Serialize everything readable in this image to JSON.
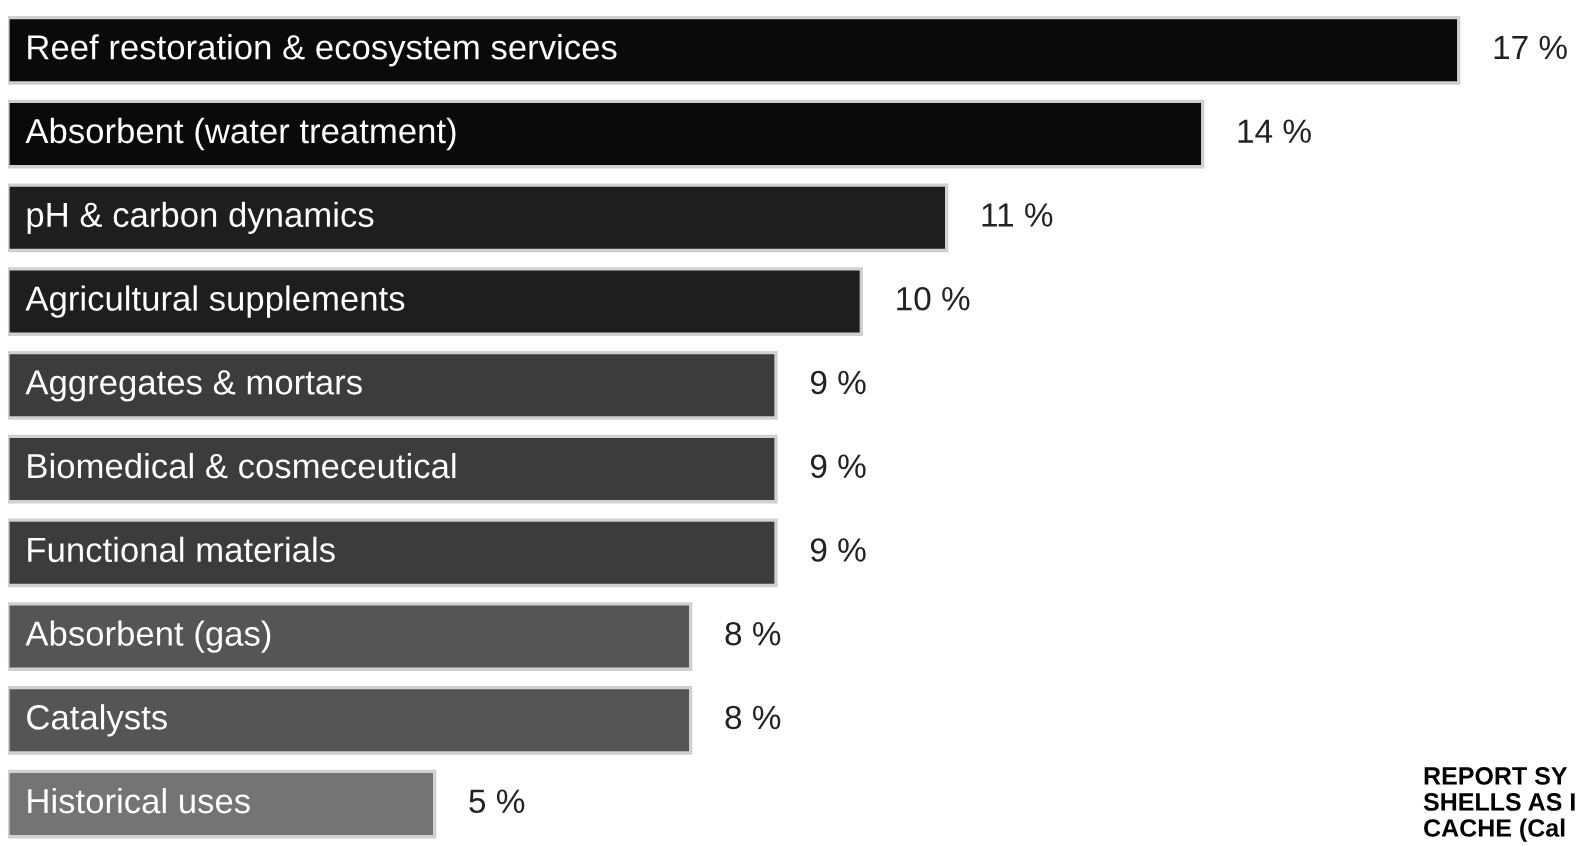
{
  "chart_data": {
    "type": "bar",
    "orientation": "horizontal",
    "categories": [
      "Reef restoration & ecosystem services",
      "Absorbent (water treatment)",
      "pH & carbon dynamics",
      "Agricultural supplements",
      "Aggregates & mortars",
      "Biomedical & cosmeceutical",
      "Functional materials",
      "Absorbent (gas)",
      "Catalysts",
      "Historical uses"
    ],
    "values": [
      17,
      14,
      11,
      10,
      9,
      9,
      9,
      8,
      8,
      5
    ],
    "colors": [
      "#0a0a0a",
      "#0a0a0a",
      "#1e1e1e",
      "#1e1e1e",
      "#3c3c3c",
      "#3c3c3c",
      "#3c3c3c",
      "#555555",
      "#555555",
      "#747474"
    ],
    "value_labels": [
      "17 %",
      "14 %",
      "11 %",
      "10 %",
      "9 %",
      "9 %",
      "9 %",
      "8 %",
      "8 %",
      "5 %"
    ],
    "annotations": [
      "REPORT SY\nSHELLS AS I\nCACHE (Cal"
    ]
  }
}
